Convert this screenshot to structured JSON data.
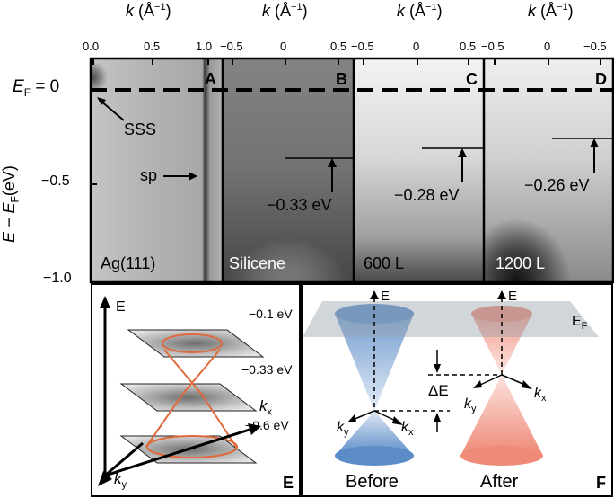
{
  "axes": {
    "top_axis_label": "k (Å⁻¹)",
    "a_ticks": [
      "0.0",
      "0.5",
      "1.0"
    ],
    "bcd_ticks": [
      "−0.5",
      "0",
      "0.5"
    ],
    "d_ticks": [
      "−0.5",
      "0",
      "−0.5"
    ],
    "y_label": "E − E",
    "y_label_sub": "F",
    "y_label_unit": "(eV)",
    "y_ticks": [
      "E",
      "−0.5",
      "−1.0"
    ],
    "ef_label": "E",
    "ef_sub": "F",
    "ef_value": "= 0"
  },
  "panels": {
    "a": {
      "letter": "A",
      "caption": "Ag(111)",
      "sss": "SSS",
      "sp": "sp"
    },
    "b": {
      "letter": "B",
      "caption": "Silicene",
      "energy": "−0.33 eV"
    },
    "c": {
      "letter": "C",
      "caption": "600 L",
      "energy": "−0.28 eV"
    },
    "d": {
      "letter": "D",
      "caption": "1200 L",
      "energy": "−0.26 eV"
    },
    "e": {
      "letter": "E",
      "axis_e": "E",
      "axis_kx": "k",
      "axis_kx_sub": "x",
      "axis_ky": "k",
      "axis_ky_sub": "y",
      "energies": [
        "−0.1 eV",
        "−0.33 eV",
        "−0.6 eV"
      ]
    },
    "f": {
      "letter": "F",
      "before": "Before",
      "after": "After",
      "axis_e": "E",
      "ef": "E",
      "ef_sub": "F",
      "delta": "ΔE",
      "kx": "k",
      "kx_sub": "x",
      "ky": "k",
      "ky_sub": "y"
    }
  }
}
